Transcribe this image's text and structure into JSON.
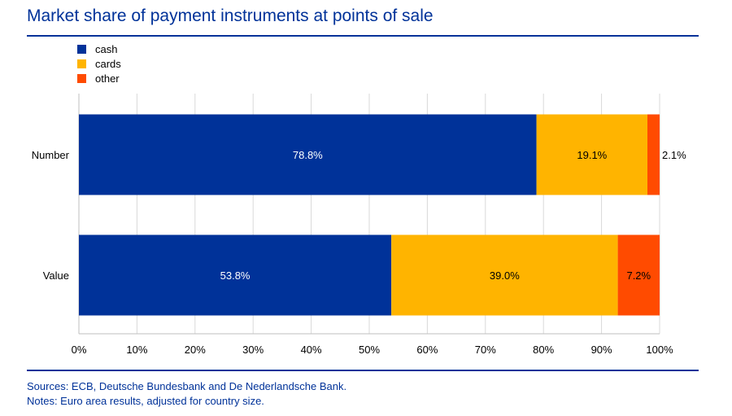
{
  "title": "Market share of payment instruments at points of sale",
  "footnotes": {
    "sources": "Sources: ECB, Deutsche Bundesbank and De Nederlandsche Bank.",
    "notes": "Notes: Euro area results, adjusted for country size."
  },
  "colors": {
    "accent": "#003299",
    "cash": "#003299",
    "cards": "#FFB400",
    "other": "#FF4B00",
    "grid": "#D9D9D9"
  },
  "chart_data": {
    "type": "bar",
    "orientation": "horizontal",
    "stacked": true,
    "categories": [
      "Number",
      "Value"
    ],
    "series": [
      {
        "name": "cash",
        "values": [
          78.8,
          53.8
        ],
        "labels": [
          "78.8%",
          "53.8%"
        ]
      },
      {
        "name": "cards",
        "values": [
          19.1,
          39.0
        ],
        "labels": [
          "19.1%",
          "39.0%"
        ]
      },
      {
        "name": "other",
        "values": [
          2.1,
          7.2
        ],
        "labels": [
          "2.1%",
          "7.2%"
        ]
      }
    ],
    "xlim": [
      0,
      100
    ],
    "xticks": [
      0,
      10,
      20,
      30,
      40,
      50,
      60,
      70,
      80,
      90,
      100
    ],
    "xtick_labels": [
      "0%",
      "10%",
      "20%",
      "30%",
      "40%",
      "50%",
      "60%",
      "70%",
      "80%",
      "90%",
      "100%"
    ],
    "grid": true,
    "legend": "top-left"
  }
}
